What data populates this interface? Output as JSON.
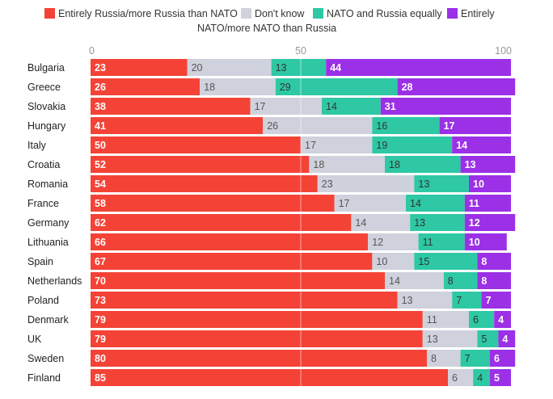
{
  "legend": [
    {
      "label": "Entirely Russia/more Russia than NATO",
      "color": "#f44336"
    },
    {
      "label": "Don't know",
      "color": "#cfd2dc"
    },
    {
      "label": "NATO and Russia equally",
      "color": "#2ec8a4"
    },
    {
      "label": "Entirely",
      "label2": "NATO/more NATO than Russia",
      "color": "#9b30e6"
    }
  ],
  "chart_data": {
    "type": "bar",
    "orientation": "horizontal",
    "stacked": true,
    "title": "",
    "xlim": [
      0,
      100
    ],
    "xticks": [
      "0",
      "50",
      "100"
    ],
    "categories": [
      "Bulgaria",
      "Greece",
      "Slovakia",
      "Hungary",
      "Italy",
      "Croatia",
      "Romania",
      "France",
      "Germany",
      "Lithuania",
      "Spain",
      "Netherlands",
      "Poland",
      "Denmark",
      "UK",
      "Sweden",
      "Finland"
    ],
    "series": [
      {
        "name": "Entirely Russia/more Russia than NATO",
        "color": "#f44336",
        "label_color": "#ffffff",
        "values": [
          23,
          26,
          38,
          41,
          50,
          52,
          54,
          58,
          62,
          66,
          67,
          70,
          73,
          79,
          79,
          80,
          85
        ]
      },
      {
        "name": "Don't know",
        "color": "#cfd2dc",
        "label_color": "#555555",
        "values": [
          20,
          18,
          17,
          26,
          17,
          18,
          23,
          17,
          14,
          12,
          10,
          14,
          13,
          11,
          13,
          8,
          6
        ]
      },
      {
        "name": "NATO and Russia equally",
        "color": "#2ec8a4",
        "label_color": "#333333",
        "values": [
          13,
          29,
          14,
          16,
          19,
          18,
          13,
          14,
          13,
          11,
          15,
          8,
          7,
          6,
          5,
          7,
          4
        ]
      },
      {
        "name": "Entirely NATO/more NATO than Russia",
        "color": "#9b30e6",
        "label_color": "#ffffff",
        "values": [
          44,
          28,
          31,
          17,
          14,
          13,
          10,
          11,
          12,
          10,
          8,
          8,
          7,
          4,
          4,
          6,
          5
        ]
      }
    ]
  }
}
